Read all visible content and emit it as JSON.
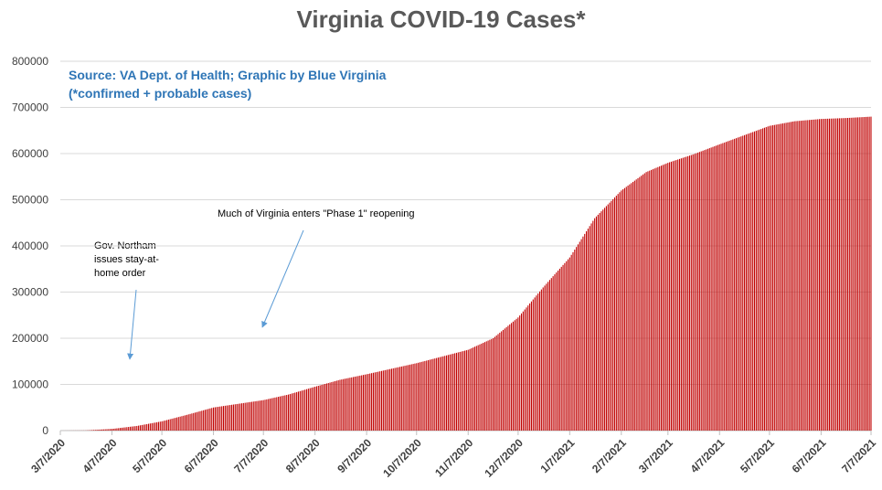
{
  "chart_data": {
    "type": "bar",
    "title": "Virginia COVID-19 Cases*",
    "source_line1": "Source: VA Dept. of Health; Graphic by Blue Virginia",
    "source_line2": "(*confirmed + probable cases)",
    "xlabel": "",
    "ylabel": "",
    "ylim": [
      0,
      800000
    ],
    "yticks": [
      0,
      100000,
      200000,
      300000,
      400000,
      500000,
      600000,
      700000,
      800000
    ],
    "xlim": [
      "2020-03-07",
      "2021-07-07"
    ],
    "xticks": [
      "3/7/2020",
      "4/7/2020",
      "5/7/2020",
      "6/7/2020",
      "7/7/2020",
      "8/7/2020",
      "9/7/2020",
      "10/7/2020",
      "11/7/2020",
      "12/7/2020",
      "1/7/2021",
      "2/7/2021",
      "3/7/2021",
      "4/7/2021",
      "5/7/2021",
      "6/7/2021",
      "7/7/2021"
    ],
    "grid": true,
    "bar_color": "#c00000",
    "series": [
      {
        "x": [
          "2020-03-07",
          "2020-03-22",
          "2020-04-07",
          "2020-04-22",
          "2020-05-07",
          "2020-05-22",
          "2020-06-07",
          "2020-06-22",
          "2020-07-07",
          "2020-07-22",
          "2020-08-07",
          "2020-08-22",
          "2020-09-07",
          "2020-09-22",
          "2020-10-07",
          "2020-10-22",
          "2020-11-07",
          "2020-11-22",
          "2020-12-07",
          "2020-12-22",
          "2021-01-07",
          "2021-01-22",
          "2021-02-07",
          "2021-02-22",
          "2021-03-07",
          "2021-03-22",
          "2021-04-07",
          "2021-04-22",
          "2021-05-07",
          "2021-05-22",
          "2021-06-07",
          "2021-06-22",
          "2021-07-07"
        ],
        "values": [
          0,
          300,
          3600,
          10000,
          20000,
          34000,
          50000,
          58000,
          66000,
          78000,
          95000,
          110000,
          122000,
          134000,
          146000,
          160000,
          175000,
          200000,
          245000,
          310000,
          375000,
          460000,
          520000,
          560000,
          580000,
          598000,
          620000,
          640000,
          660000,
          670000,
          675000,
          677000,
          680000
        ]
      }
    ],
    "annotations": [
      {
        "text": "Gov. Northam issues stay-at-home order",
        "points_to": "2020-03-30"
      },
      {
        "text": "Much of Virginia enters \"Phase 1\" reopening",
        "points_to": "2020-05-15"
      }
    ]
  }
}
